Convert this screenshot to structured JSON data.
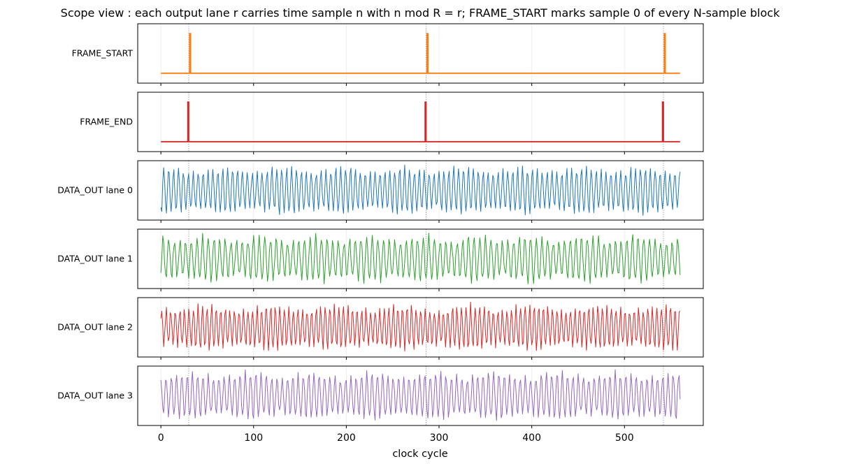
{
  "chart_data": {
    "type": "line",
    "title": "Scope view : each output lane r carries time sample n with n mod R = r; FRAME_START marks sample 0 of every N-sample block",
    "xlabel": "clock cycle",
    "xlim": [
      -25,
      585
    ],
    "x_ticks": [
      0,
      100,
      200,
      300,
      400,
      500
    ],
    "x_tick_labels": [
      "0",
      "100",
      "200",
      "300",
      "400",
      "500"
    ],
    "n_cycles": 561,
    "grid": "x",
    "marker_lines_x": [
      30,
      286,
      542
    ],
    "marker_line_style": "dotted",
    "lanes": [
      {
        "name": "FRAME_START",
        "kind": "pulse",
        "color": "#ff7f0e",
        "pulse_x": [
          31,
          287,
          543
        ],
        "low": 0,
        "high": 1,
        "ylim": [
          -0.25,
          1.25
        ]
      },
      {
        "name": "FRAME_END",
        "kind": "pulse",
        "color": "#d62728",
        "pulse_x": [
          29,
          285,
          541
        ],
        "low": 0,
        "high": 1,
        "ylim": [
          -0.25,
          1.25
        ]
      },
      {
        "name": "DATA_OUT lane 0",
        "kind": "data",
        "color": "#1f77b4",
        "ylim": [
          -1.4,
          1.4
        ],
        "period_cycles": 5.3,
        "amplitude": 1.05,
        "envelope_depth": 0.22,
        "envelope_period_cycles": 64
      },
      {
        "name": "DATA_OUT lane 1",
        "kind": "data",
        "color": "#2ca02c",
        "ylim": [
          -1.4,
          1.4
        ],
        "period_cycles": 6.1,
        "amplitude": 1.05,
        "envelope_depth": 0.25,
        "envelope_period_cycles": 58
      },
      {
        "name": "DATA_OUT lane 2",
        "kind": "data",
        "color": "#d62728",
        "ylim": [
          -1.4,
          1.4
        ],
        "period_cycles": 4.9,
        "amplitude": 1.0,
        "envelope_depth": 0.2,
        "envelope_period_cycles": 71
      },
      {
        "name": "DATA_OUT lane 3",
        "kind": "data",
        "color": "#9467bd",
        "ylim": [
          -1.4,
          1.4
        ],
        "period_cycles": 5.7,
        "amplitude": 1.05,
        "envelope_depth": 0.22,
        "envelope_period_cycles": 66
      }
    ]
  }
}
